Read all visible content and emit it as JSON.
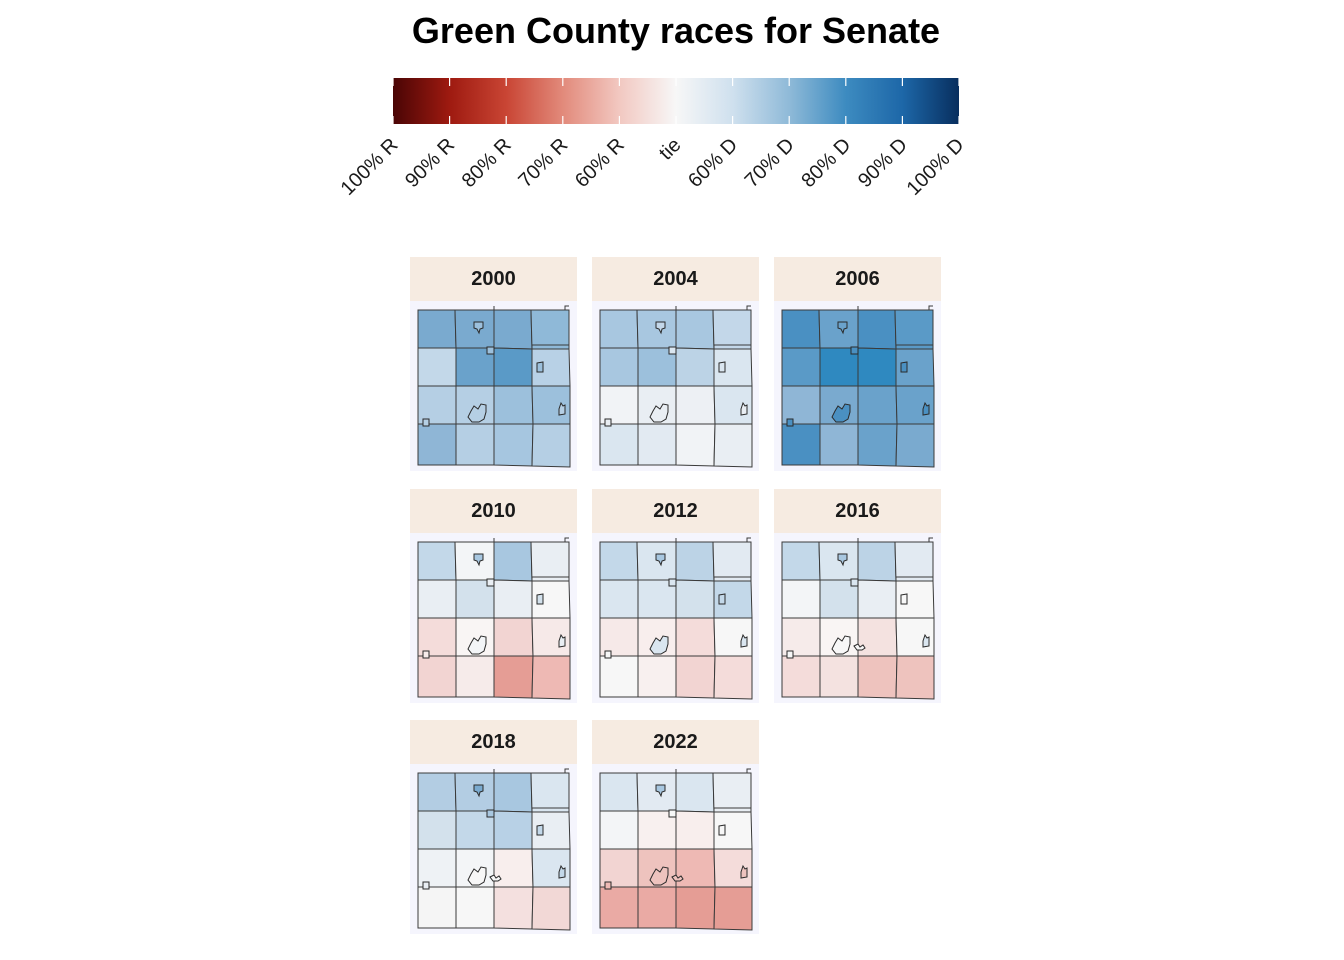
{
  "title": "Green County races for Senate",
  "legend": {
    "tick_labels": [
      "100% R",
      "90% R",
      "80% R",
      "70% R",
      "60% R",
      "tie",
      "60% D",
      "70% D",
      "80% D",
      "90% D",
      "100% D"
    ],
    "colors": [
      "#4a0505",
      "#9e1a10",
      "#c94534",
      "#e28a7b",
      "#f2c8c1",
      "#f7f7f7",
      "#cfe0ee",
      "#8fbad8",
      "#3d8bc0",
      "#1d67a8",
      "#082e5e"
    ]
  },
  "panels": [
    {
      "year": "2000",
      "cells": [
        [
          "#7aaacf",
          "#7aaacf",
          "#7aaacf",
          "#8fb9d8"
        ],
        [
          "#c3d8e9",
          "#6aa2cb",
          "#5a9ac7",
          "#b8d1e6"
        ],
        [
          "#b5cfe4",
          "#b5cfe4",
          "#9cc0dc",
          "#9cc0dc"
        ],
        [
          "#8fb6d6",
          "#b5cfe4",
          "#a6c6e0",
          "#b5cfe4"
        ]
      ],
      "towns": [
        "#9cc0dc",
        "#9cc0dc",
        "#9cc0dc",
        "#b5cfe4",
        "#b5cfe4",
        "#b5cfe4"
      ]
    },
    {
      "year": "2004",
      "cells": [
        [
          "#a8c7e0",
          "#a8c7e0",
          "#a8c7e0",
          "#c3d7e9"
        ],
        [
          "#a8c7e0",
          "#9cc0dc",
          "#bcd3e6",
          "#dae6f0"
        ],
        [
          "#f1f3f6",
          "#e9eef3",
          "#edf0f4",
          "#dae6f0"
        ],
        [
          "#dae6f0",
          "#e2eaf2",
          "#f1f3f6",
          "#e9eef3"
        ]
      ],
      "towns": [
        "#c3d7e9",
        "#dae6f0",
        "#dae6f0",
        "#e9eef3",
        "#e9eef3",
        "#e9eef3"
      ]
    },
    {
      "year": "2006",
      "cells": [
        [
          "#4a90c2",
          "#6aa2cb",
          "#4a90c2",
          "#5a9ac7"
        ],
        [
          "#5a9ac7",
          "#2f89c0",
          "#2f89c0",
          "#6aa2cb"
        ],
        [
          "#8fb6d6",
          "#7aaacf",
          "#6aa2cb",
          "#6aa2cb"
        ],
        [
          "#4a90c2",
          "#8fb6d6",
          "#6aa2cb",
          "#7aaacf"
        ]
      ],
      "towns": [
        "#6aa2cb",
        "#4a90c2",
        "#4a90c2",
        "#4a90c2",
        "#4a90c2",
        "#4a90c2"
      ]
    },
    {
      "year": "2010",
      "cells": [
        [
          "#c3d8e9",
          "#f3f5f7",
          "#a8c7e0",
          "#e9eef3"
        ],
        [
          "#e9eef3",
          "#d3e1ec",
          "#e9eef3",
          "#f7f7f7"
        ],
        [
          "#f4dcda",
          "#f9f5f4",
          "#f2d4d2",
          "#f6e9e8"
        ],
        [
          "#f2d4d2",
          "#f6ebea",
          "#e59d95",
          "#eeb9b4"
        ]
      ],
      "towns": [
        "#a8c7e0",
        "#e9eef3",
        "#d3e1ec",
        "#f3f5f7",
        "#e9eef3",
        "#f6ebea"
      ]
    },
    {
      "year": "2012",
      "cells": [
        [
          "#c3d8e9",
          "#dae6f0",
          "#bcd3e6",
          "#e2eaf2"
        ],
        [
          "#dae6f0",
          "#dae6f0",
          "#d3e1ec",
          "#c3d8e9"
        ],
        [
          "#f6e9e8",
          "#f8eeed",
          "#f4dcda",
          "#f7f7f7"
        ],
        [
          "#f7f7f7",
          "#f8f0ef",
          "#f2d4d2",
          "#f4dcda"
        ]
      ],
      "towns": [
        "#a8c7e0",
        "#dae6f0",
        "#c3d8e9",
        "#dae6f0",
        "#dae6f0",
        "#f7f7f7"
      ]
    },
    {
      "year": "2016",
      "cells": [
        [
          "#c3d8e9",
          "#dae6f0",
          "#bcd3e6",
          "#e2eaf2"
        ],
        [
          "#f3f5f7",
          "#d3e1ec",
          "#e9eef3",
          "#f7f7f7"
        ],
        [
          "#f6ebea",
          "#f9f5f4",
          "#f4e2e0",
          "#f7f7f7"
        ],
        [
          "#f4dcda",
          "#f4e2e0",
          "#eec3be",
          "#eec3be"
        ]
      ],
      "towns": [
        "#a8c7e0",
        "#dae6f0",
        "#f7f7f7",
        "#f7f7f7",
        "#dae6f0",
        "#f7f7f7"
      ]
    },
    {
      "year": "2018",
      "cells": [
        [
          "#b3cde3",
          "#b3cde3",
          "#a8c7e0",
          "#dae6f0"
        ],
        [
          "#d3e1ec",
          "#c3d8e9",
          "#b8d1e6",
          "#e9eef3"
        ],
        [
          "#eef2f5",
          "#f3f5f7",
          "#f8eeed",
          "#dae6f0"
        ],
        [
          "#f5f5f5",
          "#f7f7f7",
          "#f4e0df",
          "#f2d8d6"
        ]
      ],
      "towns": [
        "#7aaacf",
        "#a8c7e0",
        "#c3d8e9",
        "#f7f7f7",
        "#c3d8e9",
        "#e9eef3"
      ]
    },
    {
      "year": "2022",
      "cells": [
        [
          "#dae6f0",
          "#e2eaf2",
          "#dae6f0",
          "#e9eef3"
        ],
        [
          "#f3f5f7",
          "#f8f0ef",
          "#f8eeed",
          "#f7f7f7"
        ],
        [
          "#f2d4d2",
          "#eec3be",
          "#eeb9b4",
          "#f4dcda"
        ],
        [
          "#eaaaa4",
          "#eaaaa4",
          "#e59d95",
          "#e59d95"
        ]
      ],
      "towns": [
        "#a8c7e0",
        "#f7f7f7",
        "#f7f7f7",
        "#eec3be",
        "#eec3be",
        "#eeb9b4"
      ]
    }
  ]
}
